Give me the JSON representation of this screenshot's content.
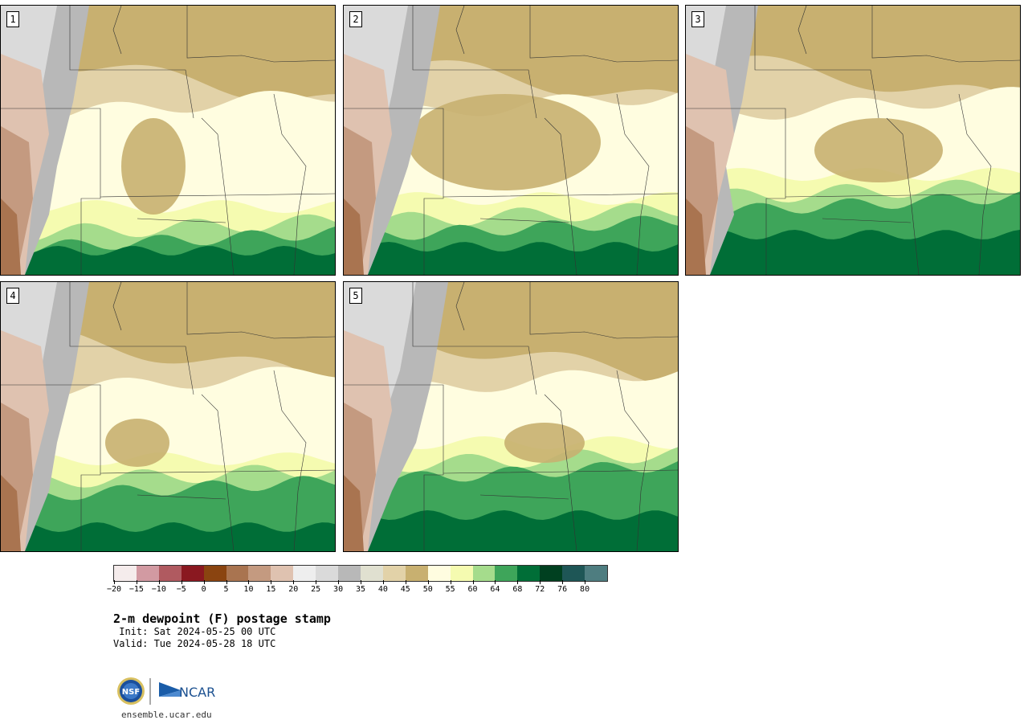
{
  "panels": [
    {
      "label": "1"
    },
    {
      "label": "2"
    },
    {
      "label": "3"
    },
    {
      "label": "4"
    },
    {
      "label": "5"
    }
  ],
  "colorbar": {
    "colors": [
      "#f5ecec",
      "#d29aa2",
      "#b05a60",
      "#8a1820",
      "#8a4410",
      "#a97450",
      "#c49a80",
      "#dfc2b0",
      "#eeeeee",
      "#dadada",
      "#b8b8b8",
      "#e0e0d0",
      "#e2d2a8",
      "#c8b070",
      "#fffde0",
      "#f5fbb0",
      "#a5dc8c",
      "#3ea55a",
      "#006e37",
      "#004020",
      "#1e5656",
      "#4e7d80"
    ],
    "ticks": [
      "−20",
      "−15",
      "−10",
      "−5",
      "0",
      "5",
      "10",
      "15",
      "20",
      "25",
      "30",
      "35",
      "40",
      "45",
      "50",
      "55",
      "60",
      "64",
      "68",
      "72",
      "76",
      "80"
    ]
  },
  "title": "2-m dewpoint (F) postage stamp",
  "init": " Init: Sat 2024-05-25 00 UTC",
  "valid": "Valid: Tue 2024-05-28 18 UTC",
  "logo": {
    "nsf": "NSF",
    "ncar": "NCAR"
  },
  "footer_url": "ensemble.ucar.edu"
}
